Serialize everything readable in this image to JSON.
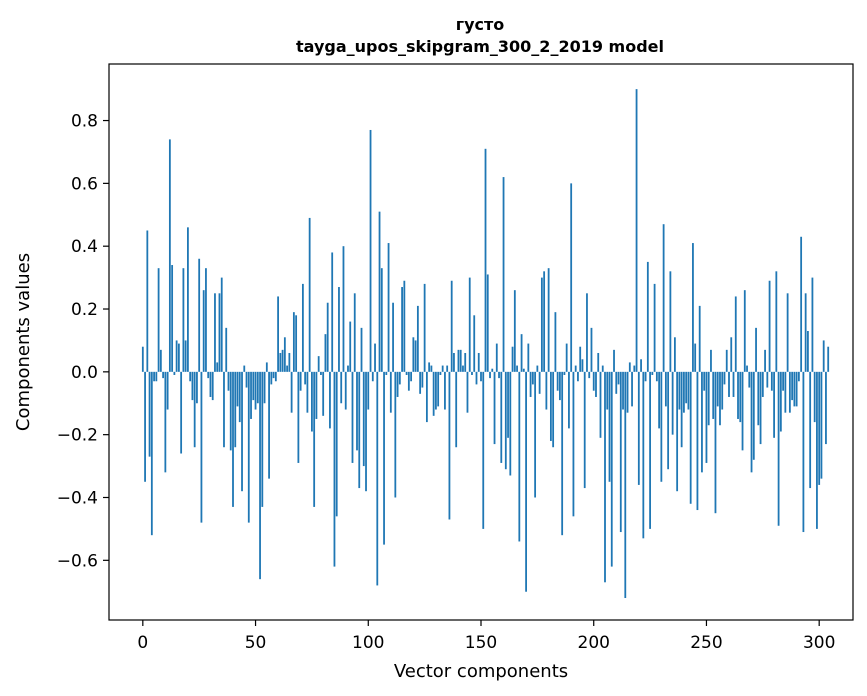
{
  "chart_data": {
    "type": "bar",
    "title": "густо",
    "subtitle": "tayga_upos_skipgram_300_2_2019 model",
    "xlabel": "Vector components",
    "ylabel": "Components values",
    "xlim": [
      -15,
      315
    ],
    "ylim": [
      -0.79,
      0.98
    ],
    "x_ticks": [
      0,
      50,
      100,
      150,
      200,
      250,
      300
    ],
    "y_ticks": [
      -0.6,
      -0.4,
      -0.2,
      0.0,
      0.2,
      0.4,
      0.6,
      0.8
    ],
    "x_tick_labels": [
      "0",
      "50",
      "100",
      "150",
      "200",
      "250",
      "300"
    ],
    "y_tick_labels": [
      "−0.6",
      "−0.4",
      "−0.2",
      "0.0",
      "0.2",
      "0.4",
      "0.6",
      "0.8"
    ],
    "bar_color": "#1f77b4",
    "grid": false,
    "values": [
      0.08,
      -0.35,
      0.45,
      -0.27,
      -0.52,
      -0.03,
      -0.03,
      0.33,
      0.07,
      -0.02,
      -0.32,
      -0.12,
      0.74,
      0.34,
      -0.01,
      0.1,
      0.09,
      -0.26,
      0.33,
      0.1,
      0.46,
      -0.03,
      -0.09,
      -0.24,
      -0.1,
      0.36,
      -0.48,
      0.26,
      0.33,
      -0.02,
      -0.08,
      -0.09,
      0.25,
      0.03,
      0.25,
      0.3,
      -0.24,
      0.14,
      -0.06,
      -0.25,
      -0.43,
      -0.24,
      -0.11,
      -0.16,
      -0.38,
      0.02,
      -0.05,
      -0.48,
      -0.15,
      -0.09,
      -0.12,
      -0.1,
      -0.66,
      -0.43,
      -0.1,
      0.03,
      -0.34,
      -0.04,
      -0.02,
      -0.03,
      0.24,
      0.06,
      0.07,
      0.11,
      0.02,
      0.06,
      -0.13,
      0.19,
      0.18,
      -0.29,
      -0.06,
      0.28,
      -0.04,
      -0.13,
      0.49,
      -0.19,
      -0.43,
      -0.15,
      0.05,
      -0.01,
      -0.14,
      0.12,
      0.22,
      -0.18,
      0.38,
      -0.62,
      -0.46,
      0.27,
      -0.1,
      0.4,
      -0.12,
      0.02,
      0.16,
      -0.29,
      0.25,
      -0.25,
      -0.37,
      0.14,
      -0.3,
      -0.38,
      -0.12,
      0.77,
      -0.03,
      0.09,
      -0.68,
      0.51,
      0.33,
      -0.55,
      -0.01,
      0.41,
      -0.13,
      0.22,
      -0.4,
      -0.08,
      -0.04,
      0.27,
      0.29,
      -0.01,
      -0.06,
      -0.03,
      0.11,
      0.1,
      0.21,
      -0.07,
      -0.05,
      0.28,
      -0.16,
      0.03,
      0.02,
      -0.14,
      -0.12,
      -0.11,
      -0.01,
      0.02,
      -0.12,
      0.02,
      -0.47,
      0.29,
      0.06,
      -0.24,
      0.07,
      0.07,
      0.02,
      0.06,
      -0.13,
      0.3,
      -0.01,
      0.18,
      -0.04,
      0.06,
      -0.03,
      -0.5,
      0.71,
      0.31,
      -0.02,
      0.01,
      -0.23,
      0.09,
      -0.02,
      -0.29,
      0.62,
      -0.31,
      -0.21,
      -0.33,
      0.08,
      0.26,
      0.02,
      -0.54,
      0.12,
      0.01,
      -0.7,
      0.09,
      -0.08,
      -0.04,
      -0.4,
      0.02,
      -0.07,
      0.3,
      0.32,
      -0.12,
      0.33,
      -0.22,
      -0.24,
      0.19,
      -0.06,
      -0.09,
      -0.52,
      -0.01,
      0.09,
      -0.18,
      0.6,
      -0.46,
      0.02,
      -0.03,
      0.08,
      0.04,
      -0.37,
      0.25,
      -0.02,
      0.14,
      -0.06,
      -0.08,
      0.06,
      -0.21,
      0.02,
      -0.67,
      -0.12,
      -0.35,
      -0.62,
      0.07,
      -0.07,
      -0.04,
      -0.51,
      -0.12,
      -0.72,
      -0.13,
      0.03,
      -0.11,
      0.02,
      0.9,
      -0.36,
      0.04,
      -0.53,
      -0.03,
      0.35,
      -0.5,
      -0.01,
      0.28,
      -0.03,
      -0.18,
      -0.35,
      0.47,
      -0.11,
      -0.31,
      0.32,
      -0.2,
      0.11,
      -0.38,
      -0.12,
      -0.24,
      -0.13,
      -0.1,
      -0.12,
      -0.42,
      0.41,
      0.09,
      -0.44,
      0.21,
      -0.32,
      -0.06,
      -0.29,
      -0.17,
      0.07,
      -0.15,
      -0.45,
      -0.11,
      -0.17,
      -0.12,
      -0.04,
      0.07,
      -0.08,
      0.11,
      -0.08,
      0.24,
      -0.15,
      -0.16,
      -0.25,
      0.26,
      0.02,
      -0.05,
      -0.32,
      -0.28,
      0.14,
      -0.17,
      -0.23,
      -0.08,
      0.07,
      -0.05,
      0.29,
      -0.06,
      -0.21,
      0.32,
      -0.49,
      -0.19,
      -0.06,
      -0.13,
      0.25,
      -0.13,
      -0.09,
      -0.11,
      -0.11,
      -0.03,
      0.43,
      -0.51,
      0.25,
      0.13,
      -0.37,
      0.3,
      -0.16,
      -0.5,
      -0.36,
      -0.34,
      0.1,
      -0.23,
      0.08
    ]
  }
}
